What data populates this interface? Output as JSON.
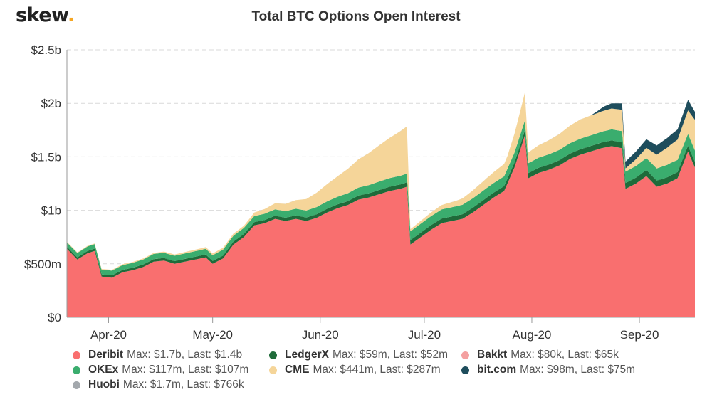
{
  "brand": {
    "logo_text": "skew",
    "logo_dot": "."
  },
  "chart_data": {
    "type": "area",
    "stacked": true,
    "title": "Total BTC Options Open Interest",
    "xlabel": "",
    "ylabel": "",
    "ylim": [
      0,
      2.5
    ],
    "y_unit": "billion USD",
    "y_ticks": [
      {
        "value": 0,
        "label": "$0"
      },
      {
        "value": 0.5,
        "label": "$500m"
      },
      {
        "value": 1.0,
        "label": "$1b"
      },
      {
        "value": 1.5,
        "label": "$1.5b"
      },
      {
        "value": 2.0,
        "label": "$2b"
      },
      {
        "value": 2.5,
        "label": "$2.5b"
      }
    ],
    "x_ticks": [
      {
        "date": "2020-04-01",
        "label": "Apr-20"
      },
      {
        "date": "2020-05-01",
        "label": "May-20"
      },
      {
        "date": "2020-06-01",
        "label": "Jun-20"
      },
      {
        "date": "2020-07-01",
        "label": "Jul-20"
      },
      {
        "date": "2020-08-01",
        "label": "Aug-20"
      },
      {
        "date": "2020-09-01",
        "label": "Sep-20"
      }
    ],
    "x_range": [
      "2020-03-20",
      "2020-09-17"
    ],
    "grid": "horizontal dashed",
    "legend_position": "bottom",
    "series": [
      {
        "name": "Deribit",
        "stats": "Max: $1.7b, Last: $1.4b",
        "color": "#f96f6f",
        "points": [
          [
            "2020-03-20",
            0.64
          ],
          [
            "2020-03-23",
            0.54
          ],
          [
            "2020-03-26",
            0.6
          ],
          [
            "2020-03-28",
            0.62
          ],
          [
            "2020-03-30",
            0.38
          ],
          [
            "2020-04-02",
            0.37
          ],
          [
            "2020-04-05",
            0.42
          ],
          [
            "2020-04-08",
            0.44
          ],
          [
            "2020-04-11",
            0.47
          ],
          [
            "2020-04-14",
            0.52
          ],
          [
            "2020-04-17",
            0.53
          ],
          [
            "2020-04-20",
            0.5
          ],
          [
            "2020-04-23",
            0.52
          ],
          [
            "2020-04-26",
            0.54
          ],
          [
            "2020-04-29",
            0.56
          ],
          [
            "2020-05-01",
            0.5
          ],
          [
            "2020-05-04",
            0.55
          ],
          [
            "2020-05-07",
            0.68
          ],
          [
            "2020-05-10",
            0.75
          ],
          [
            "2020-05-13",
            0.86
          ],
          [
            "2020-05-16",
            0.88
          ],
          [
            "2020-05-19",
            0.92
          ],
          [
            "2020-05-22",
            0.9
          ],
          [
            "2020-05-25",
            0.92
          ],
          [
            "2020-05-28",
            0.9
          ],
          [
            "2020-05-31",
            0.93
          ],
          [
            "2020-06-03",
            0.98
          ],
          [
            "2020-06-06",
            1.02
          ],
          [
            "2020-06-09",
            1.05
          ],
          [
            "2020-06-12",
            1.1
          ],
          [
            "2020-06-15",
            1.12
          ],
          [
            "2020-06-18",
            1.15
          ],
          [
            "2020-06-21",
            1.18
          ],
          [
            "2020-06-24",
            1.2
          ],
          [
            "2020-06-26",
            1.22
          ],
          [
            "2020-06-27",
            0.68
          ],
          [
            "2020-06-30",
            0.75
          ],
          [
            "2020-07-03",
            0.82
          ],
          [
            "2020-07-06",
            0.88
          ],
          [
            "2020-07-09",
            0.9
          ],
          [
            "2020-07-12",
            0.92
          ],
          [
            "2020-07-15",
            0.98
          ],
          [
            "2020-07-18",
            1.05
          ],
          [
            "2020-07-21",
            1.12
          ],
          [
            "2020-07-24",
            1.18
          ],
          [
            "2020-07-27",
            1.4
          ],
          [
            "2020-07-30",
            1.7
          ],
          [
            "2020-07-31",
            1.3
          ],
          [
            "2020-08-03",
            1.35
          ],
          [
            "2020-08-06",
            1.38
          ],
          [
            "2020-08-09",
            1.42
          ],
          [
            "2020-08-12",
            1.48
          ],
          [
            "2020-08-15",
            1.52
          ],
          [
            "2020-08-18",
            1.55
          ],
          [
            "2020-08-21",
            1.58
          ],
          [
            "2020-08-24",
            1.6
          ],
          [
            "2020-08-27",
            1.58
          ],
          [
            "2020-08-28",
            1.2
          ],
          [
            "2020-08-31",
            1.25
          ],
          [
            "2020-09-03",
            1.32
          ],
          [
            "2020-09-06",
            1.22
          ],
          [
            "2020-09-09",
            1.25
          ],
          [
            "2020-09-12",
            1.3
          ],
          [
            "2020-09-15",
            1.55
          ],
          [
            "2020-09-17",
            1.4
          ]
        ]
      },
      {
        "name": "LedgerX",
        "stats": "Max: $59m, Last: $52m",
        "color": "#1f6b3a",
        "points": [
          [
            "2020-03-20",
            0.02
          ],
          [
            "2020-04-20",
            0.025
          ],
          [
            "2020-05-20",
            0.03
          ],
          [
            "2020-06-20",
            0.04
          ],
          [
            "2020-07-20",
            0.045
          ],
          [
            "2020-08-20",
            0.052
          ],
          [
            "2020-09-10",
            0.059
          ],
          [
            "2020-09-17",
            0.052
          ]
        ]
      },
      {
        "name": "Bakkt",
        "stats": "Max: $80k, Last: $65k",
        "color": "#f4a0a0",
        "points": [
          [
            "2020-03-20",
            4e-05
          ],
          [
            "2020-06-20",
            6e-05
          ],
          [
            "2020-08-20",
            8e-05
          ],
          [
            "2020-09-17",
            6.5e-05
          ]
        ]
      },
      {
        "name": "OKEx",
        "stats": "Max: $117m, Last: $107m",
        "color": "#3aad6e",
        "points": [
          [
            "2020-03-20",
            0.04
          ],
          [
            "2020-04-20",
            0.05
          ],
          [
            "2020-05-20",
            0.06
          ],
          [
            "2020-06-20",
            0.08
          ],
          [
            "2020-07-20",
            0.09
          ],
          [
            "2020-08-20",
            0.1
          ],
          [
            "2020-09-10",
            0.117
          ],
          [
            "2020-09-17",
            0.107
          ]
        ]
      },
      {
        "name": "CME",
        "stats": "Max: $441m, Last: $287m",
        "color": "#f5d599",
        "points": [
          [
            "2020-03-20",
            0.005
          ],
          [
            "2020-04-15",
            0.01
          ],
          [
            "2020-05-10",
            0.02
          ],
          [
            "2020-05-25",
            0.08
          ],
          [
            "2020-06-05",
            0.18
          ],
          [
            "2020-06-15",
            0.3
          ],
          [
            "2020-06-26",
            0.441
          ],
          [
            "2020-06-27",
            0.02
          ],
          [
            "2020-07-10",
            0.05
          ],
          [
            "2020-07-25",
            0.12
          ],
          [
            "2020-07-30",
            0.26
          ],
          [
            "2020-07-31",
            0.1
          ],
          [
            "2020-08-15",
            0.18
          ],
          [
            "2020-08-27",
            0.2
          ],
          [
            "2020-08-28",
            0.03
          ],
          [
            "2020-09-08",
            0.15
          ],
          [
            "2020-09-15",
            0.22
          ],
          [
            "2020-09-17",
            0.287
          ]
        ]
      },
      {
        "name": "bit.com",
        "stats": "Max: $98m, Last: $75m",
        "color": "#1e4d5c",
        "points": [
          [
            "2020-03-20",
            0
          ],
          [
            "2020-08-18",
            0
          ],
          [
            "2020-08-22",
            0.04
          ],
          [
            "2020-08-27",
            0.06
          ],
          [
            "2020-08-30",
            0.07
          ],
          [
            "2020-09-05",
            0.085
          ],
          [
            "2020-09-15",
            0.098
          ],
          [
            "2020-09-17",
            0.075
          ]
        ]
      },
      {
        "name": "Huobi",
        "stats": "Max: $1.7m, Last: $766k",
        "color": "#a3a8ad",
        "points": [
          [
            "2020-03-20",
            0
          ],
          [
            "2020-09-01",
            0.0005
          ],
          [
            "2020-09-10",
            0.0017
          ],
          [
            "2020-09-17",
            0.000766
          ]
        ]
      }
    ]
  }
}
